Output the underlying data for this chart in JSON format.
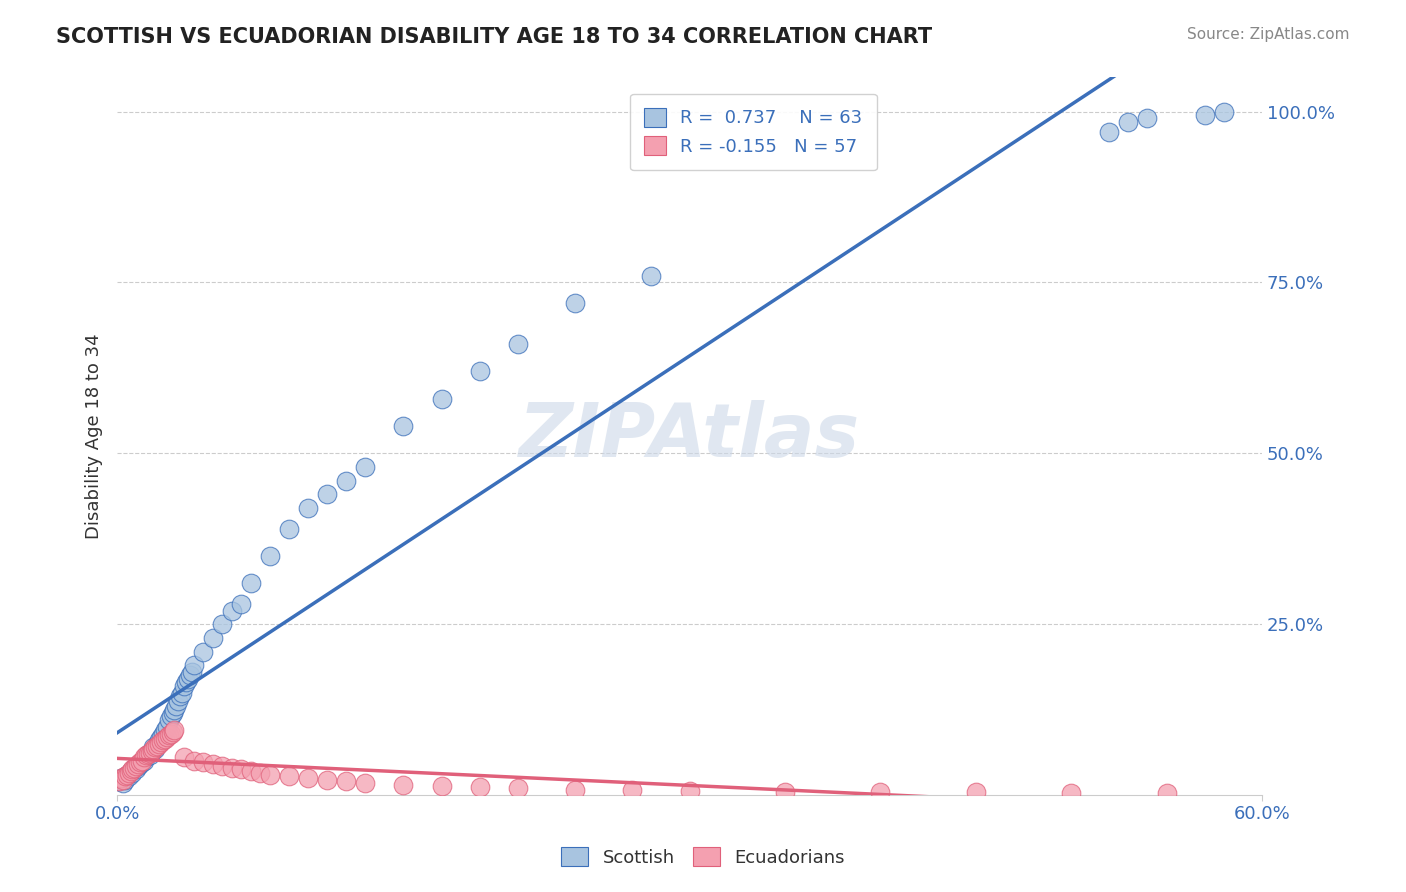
{
  "title": "SCOTTISH VS ECUADORIAN DISABILITY AGE 18 TO 34 CORRELATION CHART",
  "source": "Source: ZipAtlas.com",
  "ylabel": "Disability Age 18 to 34",
  "xlim": [
    0.0,
    0.6
  ],
  "ylim": [
    0.0,
    1.05
  ],
  "ytick_labels": [
    "25.0%",
    "50.0%",
    "75.0%",
    "100.0%"
  ],
  "ytick_values": [
    0.25,
    0.5,
    0.75,
    1.0
  ],
  "r_scottish": 0.737,
  "n_scottish": 63,
  "r_ecuadorian": -0.155,
  "n_ecuadorian": 57,
  "scottish_color": "#a8c4e0",
  "ecuadorian_color": "#f4a0b0",
  "scottish_line_color": "#3b6fba",
  "ecuadorian_line_color": "#e0607a",
  "watermark": "ZIPAtlas",
  "scottish_x": [
    0.001,
    0.002,
    0.003,
    0.004,
    0.005,
    0.006,
    0.007,
    0.008,
    0.009,
    0.01,
    0.011,
    0.012,
    0.013,
    0.014,
    0.015,
    0.016,
    0.017,
    0.018,
    0.019,
    0.02,
    0.021,
    0.022,
    0.023,
    0.024,
    0.025,
    0.026,
    0.027,
    0.028,
    0.029,
    0.03,
    0.031,
    0.032,
    0.033,
    0.034,
    0.035,
    0.036,
    0.037,
    0.038,
    0.039,
    0.04,
    0.045,
    0.05,
    0.055,
    0.06,
    0.065,
    0.07,
    0.08,
    0.09,
    0.1,
    0.11,
    0.12,
    0.13,
    0.15,
    0.17,
    0.19,
    0.21,
    0.24,
    0.28,
    0.52,
    0.53,
    0.54,
    0.57,
    0.58
  ],
  "scottish_y": [
    0.02,
    0.025,
    0.018,
    0.022,
    0.03,
    0.028,
    0.035,
    0.032,
    0.04,
    0.038,
    0.042,
    0.045,
    0.048,
    0.05,
    0.055,
    0.06,
    0.058,
    0.065,
    0.07,
    0.068,
    0.075,
    0.08,
    0.085,
    0.09,
    0.095,
    0.1,
    0.11,
    0.115,
    0.12,
    0.125,
    0.13,
    0.138,
    0.145,
    0.15,
    0.16,
    0.165,
    0.17,
    0.175,
    0.18,
    0.19,
    0.21,
    0.23,
    0.25,
    0.27,
    0.28,
    0.31,
    0.35,
    0.39,
    0.42,
    0.44,
    0.46,
    0.48,
    0.54,
    0.58,
    0.62,
    0.66,
    0.72,
    0.76,
    0.97,
    0.985,
    0.99,
    0.995,
    1.0
  ],
  "ecuadorian_x": [
    0.001,
    0.002,
    0.003,
    0.004,
    0.005,
    0.006,
    0.007,
    0.008,
    0.009,
    0.01,
    0.011,
    0.012,
    0.013,
    0.014,
    0.015,
    0.016,
    0.017,
    0.018,
    0.019,
    0.02,
    0.021,
    0.022,
    0.023,
    0.024,
    0.025,
    0.026,
    0.027,
    0.028,
    0.029,
    0.03,
    0.035,
    0.04,
    0.045,
    0.05,
    0.055,
    0.06,
    0.065,
    0.07,
    0.075,
    0.08,
    0.09,
    0.1,
    0.11,
    0.12,
    0.13,
    0.15,
    0.17,
    0.19,
    0.21,
    0.24,
    0.27,
    0.3,
    0.35,
    0.4,
    0.45,
    0.5,
    0.55
  ],
  "ecuadorian_y": [
    0.02,
    0.025,
    0.022,
    0.028,
    0.03,
    0.032,
    0.035,
    0.038,
    0.04,
    0.042,
    0.045,
    0.048,
    0.05,
    0.055,
    0.058,
    0.06,
    0.062,
    0.065,
    0.068,
    0.07,
    0.072,
    0.075,
    0.078,
    0.08,
    0.082,
    0.085,
    0.088,
    0.09,
    0.092,
    0.095,
    0.055,
    0.05,
    0.048,
    0.045,
    0.042,
    0.04,
    0.038,
    0.035,
    0.033,
    0.03,
    0.028,
    0.025,
    0.022,
    0.02,
    0.018,
    0.015,
    0.013,
    0.012,
    0.01,
    0.008,
    0.007,
    0.006,
    0.005,
    0.005,
    0.004,
    0.003,
    0.003
  ]
}
